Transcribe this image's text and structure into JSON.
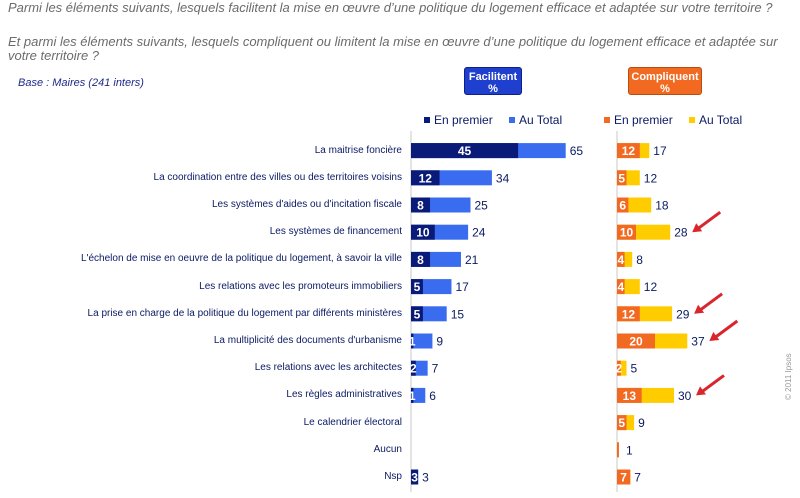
{
  "question_1": "Parmi les éléments suivants, lesquels facilitent la mise en œuvre d’une politique du logement efficace et adaptée sur votre territoire ?",
  "question_2": "Et parmi les éléments suivants, lesquels compliquent ou limitent la mise en œuvre d’une politique du logement efficace et adaptée sur votre territoire ?",
  "base": "Base : Maires (241 inters)",
  "headers": {
    "left_title": "Facilitent",
    "left_unit": "%",
    "right_title": "Compliquent",
    "right_unit": "%"
  },
  "legend": {
    "first": "En premier",
    "total": "Au Total"
  },
  "colors": {
    "left_first": "#0a1a78",
    "left_total": "#3a6cf0",
    "right_first": "#f26a22",
    "right_total": "#ffcc00",
    "arrow": "#d9262c"
  },
  "copyright": "© 2011 Ipsos",
  "chart_data": {
    "type": "bar",
    "categories": [
      "La maitrise foncière",
      "La coordination entre des villes ou des territoires voisins",
      "Les systèmes d'aides ou d'incitation fiscale",
      "Les systèmes de financement",
      "L'échelon de mise en oeuvre de la politique du logement, à savoir la ville",
      "Les relations avec les promoteurs immobiliers",
      "La prise en charge de la politique du logement par différents ministères",
      "La multiplicité des documents d'urbanisme",
      "Les relations avec les architectes",
      "Les règles administratives",
      "Le calendrier électoral",
      "Aucun",
      "Nsp"
    ],
    "facilitent": {
      "en_premier": [
        45,
        12,
        8,
        10,
        8,
        5,
        5,
        1,
        2,
        1,
        null,
        null,
        3
      ],
      "au_total": [
        65,
        34,
        25,
        24,
        21,
        17,
        15,
        9,
        7,
        6,
        null,
        null,
        3
      ]
    },
    "compliquent": {
      "en_premier": [
        12,
        5,
        6,
        10,
        4,
        4,
        12,
        20,
        2,
        13,
        5,
        1,
        7
      ],
      "au_total": [
        17,
        12,
        18,
        28,
        8,
        12,
        29,
        37,
        5,
        30,
        9,
        1,
        7
      ]
    },
    "highlighted_compliquent": [
      3,
      6,
      7,
      9
    ]
  }
}
